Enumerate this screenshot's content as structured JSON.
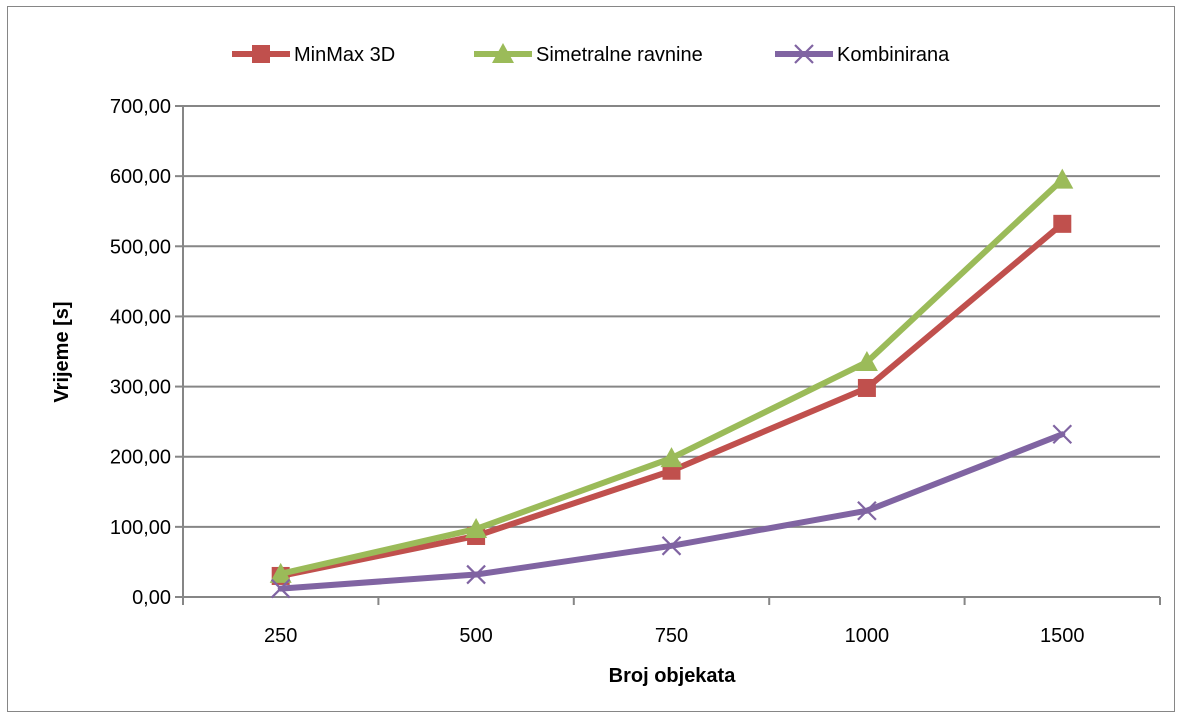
{
  "chart_data": {
    "type": "line",
    "categories": [
      "250",
      "500",
      "750",
      "1000",
      "1500"
    ],
    "xlabel": "Broj objekata",
    "ylabel": "Vrijeme [s]",
    "ylim": [
      0,
      700
    ],
    "yticks": [
      "0,00",
      "100,00",
      "200,00",
      "300,00",
      "400,00",
      "500,00",
      "600,00",
      "700,00"
    ],
    "grid": true,
    "legend_position": "top",
    "series": [
      {
        "name": "MinMax 3D",
        "values": [
          30,
          87,
          180,
          298,
          532
        ],
        "color": "#c0504d",
        "marker": "square"
      },
      {
        "name": "Simetralne ravnine",
        "values": [
          33,
          97,
          198,
          335,
          595
        ],
        "color": "#9bbb59",
        "marker": "triangle"
      },
      {
        "name": "Kombinirana",
        "values": [
          12,
          32,
          73,
          123,
          232
        ],
        "color": "#8064a2",
        "marker": "x"
      }
    ]
  }
}
